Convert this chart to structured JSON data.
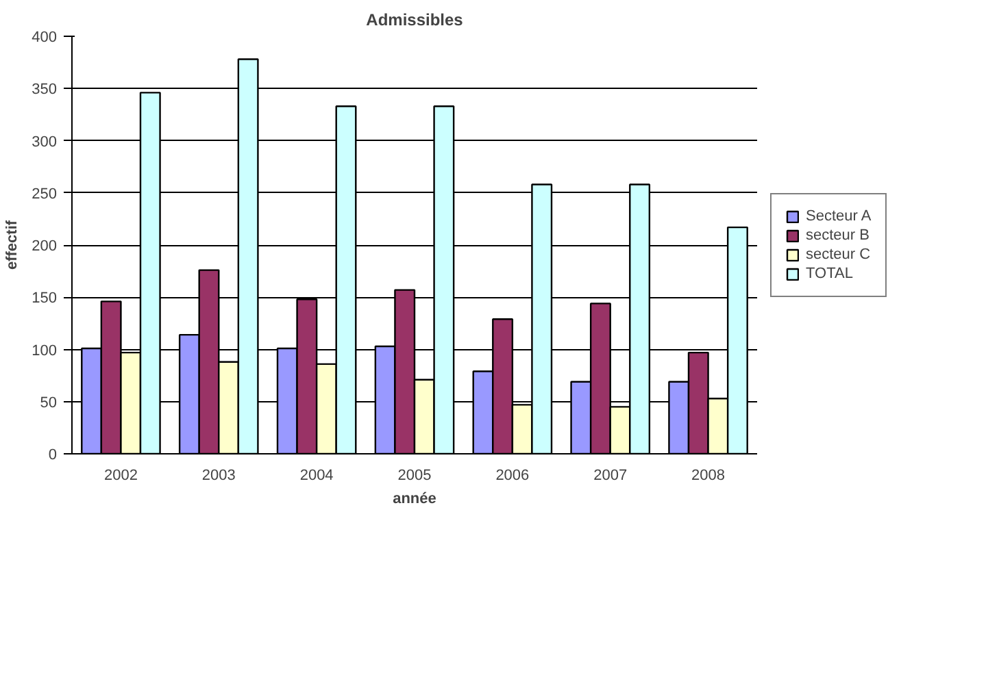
{
  "chart_data": {
    "type": "bar",
    "title": "Admissibles",
    "xlabel": "année",
    "ylabel": "effectif",
    "categories": [
      "2002",
      "2003",
      "2004",
      "2005",
      "2006",
      "2007",
      "2008"
    ],
    "series": [
      {
        "name": "Secteur A",
        "color": "#9999ff",
        "values": [
          101,
          114,
          101,
          103,
          79,
          69,
          69
        ]
      },
      {
        "name": "secteur B",
        "color": "#993366",
        "values": [
          146,
          176,
          148,
          157,
          129,
          144,
          97
        ]
      },
      {
        "name": "secteur C",
        "color": "#ffffcc",
        "values": [
          97,
          88,
          86,
          71,
          47,
          45,
          53
        ]
      },
      {
        "name": "TOTAL",
        "color": "#ccffff",
        "values": [
          346,
          378,
          333,
          333,
          258,
          258,
          217
        ]
      }
    ],
    "ylim": [
      0,
      400
    ],
    "yticks": [
      0,
      50,
      100,
      150,
      200,
      250,
      300,
      350,
      400
    ],
    "grid": "y",
    "legend": "right"
  }
}
